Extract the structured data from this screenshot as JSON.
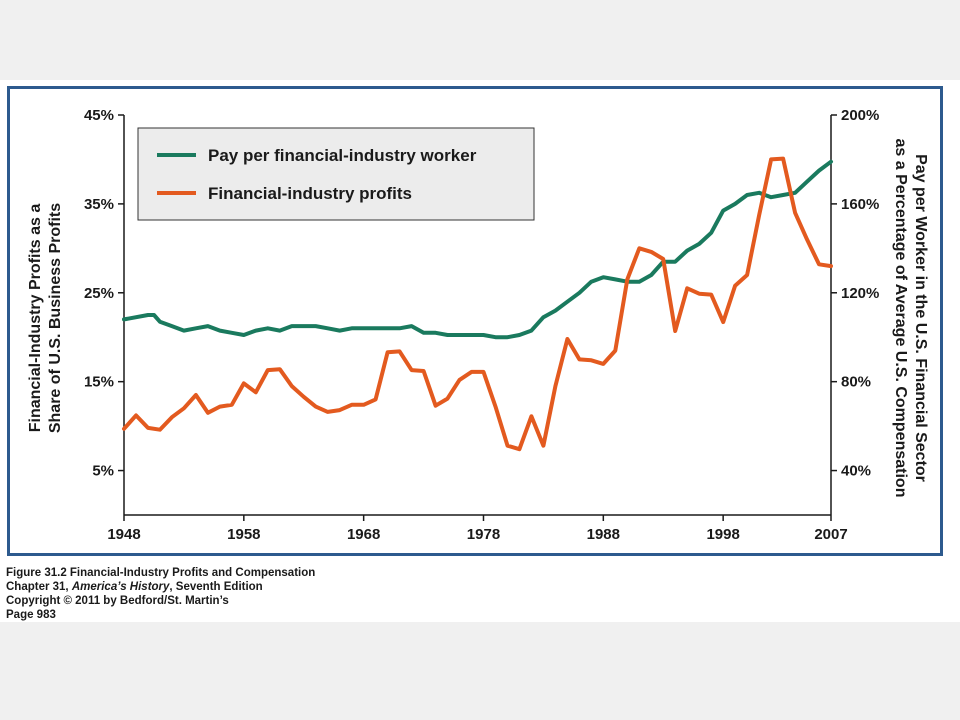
{
  "chart_data": {
    "type": "line",
    "title": "",
    "xlabel": "",
    "x_ticks": [
      "1948",
      "1958",
      "1968",
      "1978",
      "1988",
      "1998",
      "2007"
    ],
    "xlim": [
      1948,
      2007
    ],
    "y_left": {
      "label_lines": [
        "Financial-Industry Profits as a",
        "Share of U.S. Business Profits"
      ],
      "ticks": [
        "45%",
        "35%",
        "25%",
        "15%",
        "5%"
      ],
      "tick_values": [
        45,
        35,
        25,
        15,
        5
      ],
      "lim": [
        0,
        45
      ]
    },
    "y_right": {
      "label_lines": [
        "Pay per Worker in the U.S. Financial Sector",
        "as a Percentage of Average U.S. Compensation"
      ],
      "ticks": [
        "200%",
        "160%",
        "120%",
        "80%",
        "40%"
      ],
      "tick_values": [
        200,
        160,
        120,
        80,
        40
      ],
      "lim": [
        20,
        200
      ]
    },
    "legend_placement": "top-left",
    "grid": false,
    "series": [
      {
        "name": "Pay per financial-industry worker",
        "axis": "right",
        "color": "#1a7a5e",
        "x": [
          1948,
          1950,
          1950.5,
          1951,
          1952,
          1953,
          1954,
          1955,
          1956,
          1957,
          1958,
          1959,
          1960,
          1961,
          1962,
          1963,
          1964,
          1965,
          1966,
          1967,
          1968,
          1969,
          1970,
          1971,
          1972,
          1973,
          1974,
          1975,
          1976,
          1977,
          1978,
          1979,
          1980,
          1981,
          1982,
          1983,
          1984,
          1985,
          1986,
          1987,
          1988,
          1989,
          1990,
          1991,
          1992,
          1993,
          1994,
          1995,
          1996,
          1997,
          1998,
          1999,
          2000,
          2001,
          2002,
          2003,
          2004,
          2005,
          2006,
          2007
        ],
        "values": [
          108,
          110,
          110,
          107,
          105,
          103,
          104,
          105,
          103,
          102,
          101,
          103,
          104,
          103,
          105,
          105,
          105,
          104,
          103,
          104,
          104,
          104,
          104,
          104,
          105,
          102,
          102,
          101,
          101,
          101,
          101,
          100,
          100,
          101,
          103,
          109,
          112,
          116,
          120,
          125,
          127,
          126,
          125,
          125,
          128,
          134,
          134,
          139,
          142,
          147,
          157,
          160,
          164,
          165,
          163,
          164,
          165,
          170,
          175,
          179
        ]
      },
      {
        "name": "Financial-industry profits",
        "axis": "left",
        "color": "#e35a1f",
        "x": [
          1948,
          1949,
          1950,
          1951,
          1952,
          1953,
          1954,
          1955,
          1956,
          1957,
          1958,
          1959,
          1960,
          1961,
          1962,
          1963,
          1964,
          1965,
          1966,
          1967,
          1968,
          1969,
          1970,
          1971,
          1972,
          1973,
          1974,
          1975,
          1976,
          1977,
          1978,
          1979,
          1980,
          1981,
          1982,
          1983,
          1984,
          1985,
          1986,
          1987,
          1988,
          1989,
          1990,
          1991,
          1992,
          1993,
          1994,
          1995,
          1996,
          1997,
          1998,
          1999,
          2000,
          2001,
          2002,
          2003,
          2004,
          2005,
          2006,
          2007
        ],
        "values": [
          9.7,
          11.2,
          9.8,
          9.6,
          11.0,
          12.0,
          13.5,
          11.5,
          12.2,
          12.4,
          14.8,
          13.8,
          16.3,
          16.4,
          14.5,
          13.3,
          12.2,
          11.6,
          11.8,
          12.4,
          12.4,
          13.0,
          18.3,
          18.4,
          16.3,
          16.2,
          12.3,
          13.1,
          15.2,
          16.1,
          16.1,
          12.2,
          7.8,
          7.4,
          11.1,
          7.8,
          14.5,
          19.8,
          17.5,
          17.4,
          17.0,
          18.5,
          26.5,
          30.0,
          29.6,
          28.8,
          20.7,
          25.5,
          24.9,
          24.8,
          21.7,
          25.8,
          27.0,
          33.7,
          40.0,
          40.1,
          34.0,
          31.0,
          28.2,
          28.0
        ]
      }
    ]
  },
  "caption": {
    "line1": "Figure 31.2  Financial-Industry Profits and Compensation",
    "line2_pre": "Chapter 31, ",
    "line2_italic": "America’s History",
    "line2_post": ", Seventh Edition",
    "line3": "Copyright © 2011 by Bedford/St. Martin’s",
    "line4": "Page 983"
  }
}
